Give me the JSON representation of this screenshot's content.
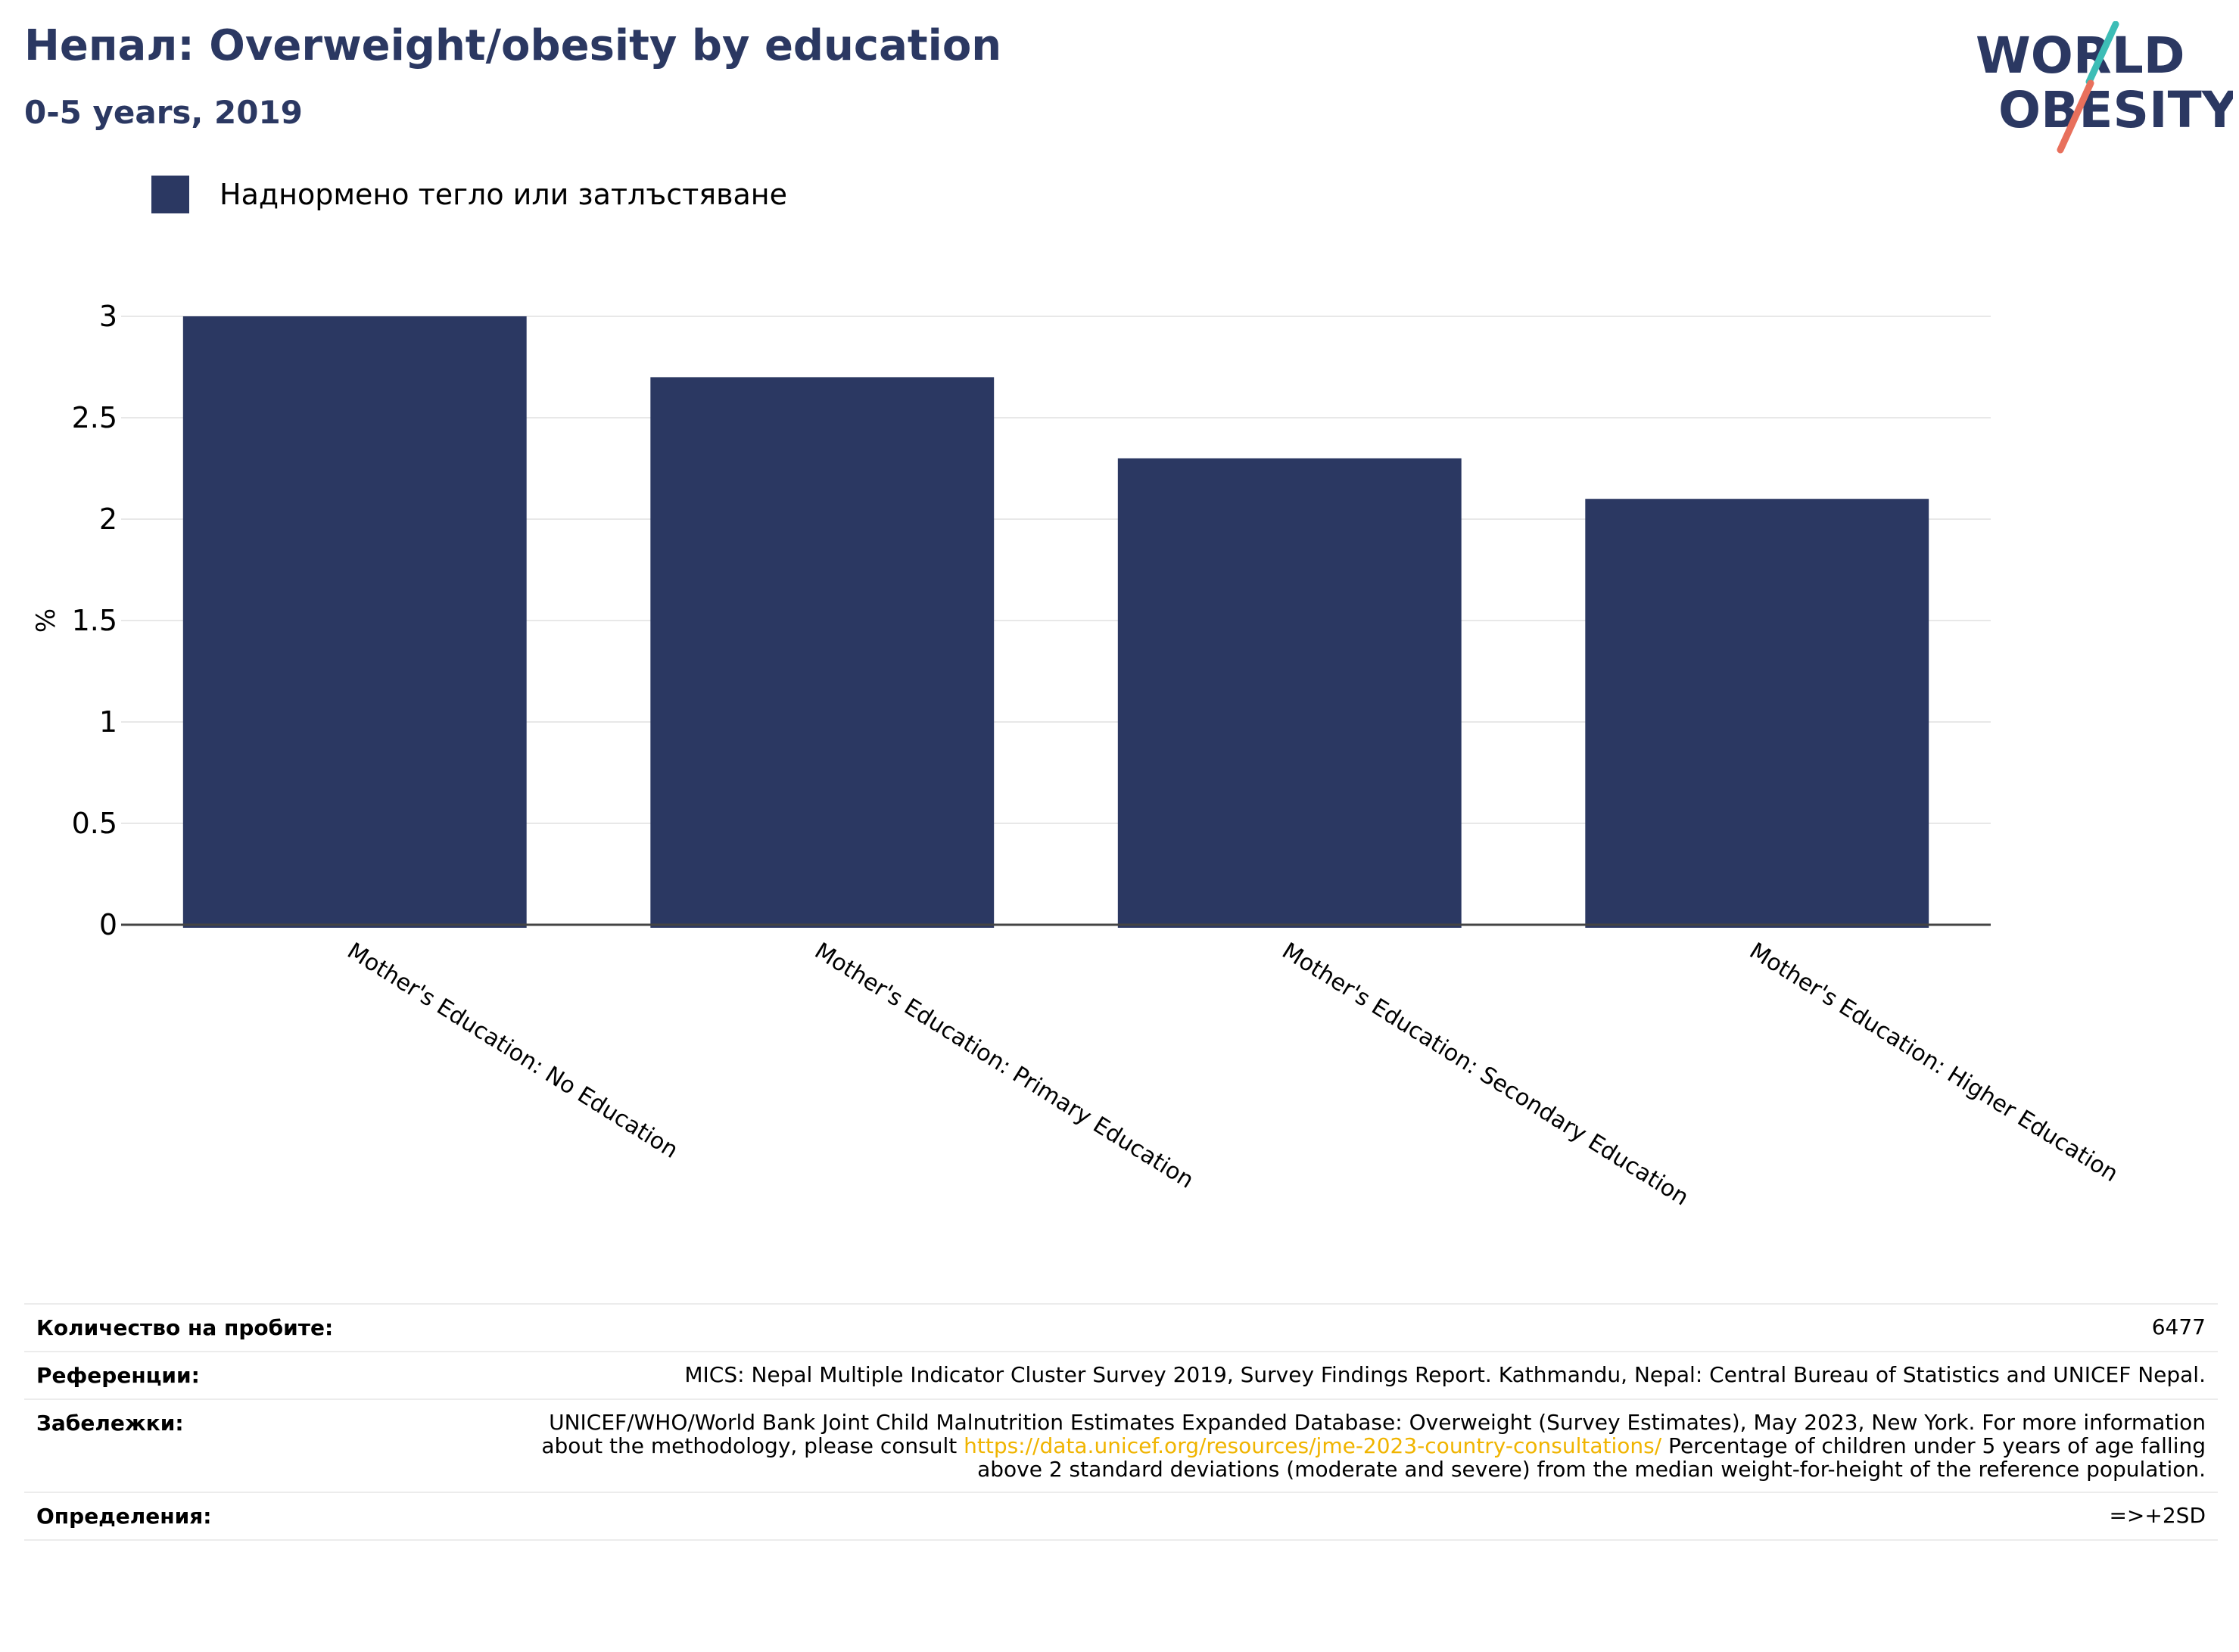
{
  "header": {
    "title": "Непал: Overweight/obesity by education",
    "subtitle": "0-5 years, 2019"
  },
  "logo": {
    "line1": "WORLD",
    "line2": "OBESITY",
    "accent_teal": "#3dbdb6",
    "accent_coral": "#e8705c"
  },
  "legend": {
    "label": "Наднормено тегло или затлъстяване",
    "color": "#2b3862"
  },
  "chart_data": {
    "type": "bar",
    "categories": [
      "Mother's Education: No Education",
      "Mother's Education: Primary Education",
      "Mother's Education: Secondary Education",
      "Mother's Education: Higher Education"
    ],
    "series": [
      {
        "name": "Наднормено тегло или затлъстяване",
        "values": [
          3.0,
          2.7,
          2.3,
          2.1
        ]
      }
    ],
    "ylabel": "%",
    "ylim": [
      0,
      3
    ],
    "yticks": [
      "0",
      "0.5",
      "1",
      "1.5",
      "2",
      "2.5",
      "3"
    ],
    "grid": true,
    "bar_color": "#2b3862"
  },
  "info": [
    {
      "key": "Количество на пробите:",
      "value": "6477"
    },
    {
      "key": "Референции:",
      "value": "MICS: Nepal Multiple Indicator Cluster Survey 2019, Survey Findings Report. Kathmandu, Nepal: Central Bureau of Statistics and UNICEF Nepal."
    },
    {
      "key": "Забележки:",
      "value_pre": "UNICEF/WHO/World Bank Joint Child Malnutrition Estimates Expanded Database: Overweight (Survey Estimates), May 2023, New York. For more information about the methodology, please consult ",
      "link": "https://data.unicef.org/resources/jme-2023-country-consultations/",
      "value_post": " Percentage of children under 5 years of age falling above 2 standard deviations (moderate and severe) from the median weight-for-height of the reference population."
    },
    {
      "key": "Определения:",
      "value": "=>+2SD"
    }
  ]
}
